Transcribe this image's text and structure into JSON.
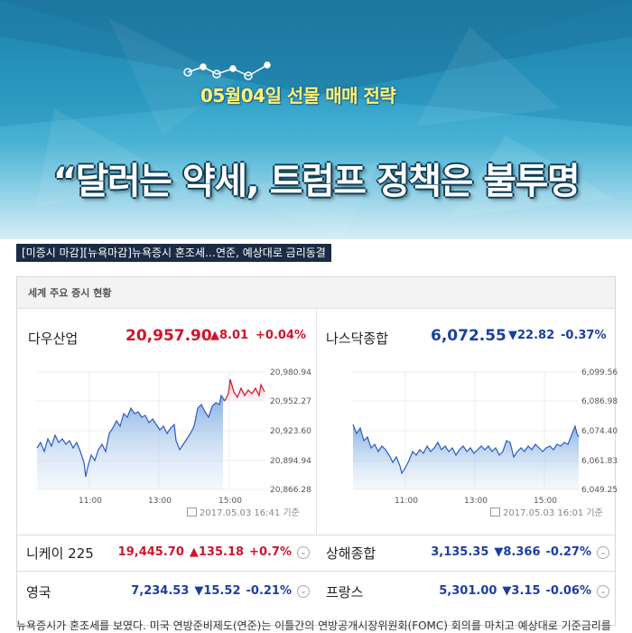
{
  "banner": {
    "subtitle": "05월04일 선물 매매 전략",
    "headline": "“달러는 약세, 트럼프 정책은 불투명"
  },
  "news_tag": "[미증시 마감][뉴욕마감]뉴욕증시 혼조세…연준, 예상대로 금리동결",
  "panel": {
    "title": "세계 주요 증시 현황",
    "dow": {
      "name": "다우산업",
      "value": "20,957.90",
      "change": "▲8.01",
      "pct": "+0.04%",
      "y_ticks": [
        "20,980.94",
        "20,952.27",
        "20,923.60",
        "20,894.94",
        "20,866.28"
      ],
      "x_ticks": [
        "11:00",
        "13:00",
        "15:00"
      ],
      "stamp": "2017.05.03 16:41 기준",
      "color_down": "#1b3fa0",
      "color_up": "#d0142a"
    },
    "nasdaq": {
      "name": "나스닥종합",
      "value": "6,072.55",
      "change": "▼22.82",
      "pct": "-0.37%",
      "y_ticks": [
        "6,099.56",
        "6,086.98",
        "6,074.40",
        "6,061.83",
        "6,049.25"
      ],
      "x_ticks": [
        "11:00",
        "13:00",
        "15:00"
      ],
      "stamp": "2017.05.03 16:01 기준"
    },
    "markets": [
      {
        "name": "니케이 225",
        "value": "19,445.70",
        "change": "▲135.18",
        "pct": "+0.7%",
        "dir": "up"
      },
      {
        "name": "상해종합",
        "value": "3,135.35",
        "change": "▼8.366",
        "pct": "-0.27%",
        "dir": "down"
      },
      {
        "name": "영국",
        "value": "7,234.53",
        "change": "▼15.52",
        "pct": "-0.21%",
        "dir": "down"
      },
      {
        "name": "프랑스",
        "value": "5,301.00",
        "change": "▼3.15",
        "pct": "-0.06%",
        "dir": "down"
      }
    ]
  },
  "bottom_text": "뉴욕증시가 혼조세를 보였다. 미국 연방준비제도(연준)는 이틀간의 연방공개시장위원회(FOMC) 회의를 마치고 예상대로 기준금리를"
}
